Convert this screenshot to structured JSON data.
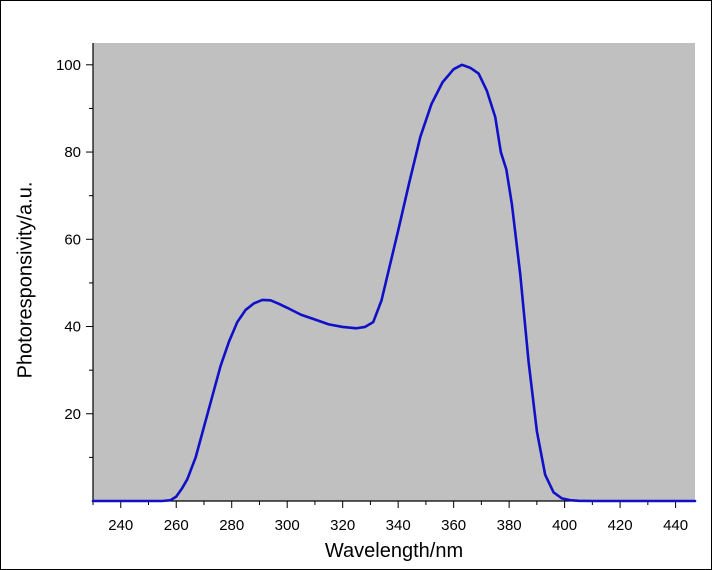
{
  "chart_data": {
    "type": "line",
    "title": "",
    "xlabel": "Wavelength/nm",
    "ylabel": "Photoresponsivity/a.u.",
    "xlim": [
      230,
      447
    ],
    "ylim": [
      0,
      105
    ],
    "x_ticks": [
      240,
      260,
      280,
      300,
      320,
      340,
      360,
      380,
      400,
      420,
      440
    ],
    "y_ticks": [
      20,
      40,
      60,
      80,
      100
    ],
    "grid": false,
    "legend": "none",
    "colors": {
      "plot_background": "#c0c0c0",
      "line": "#1010c8",
      "axis": "#000000"
    },
    "series": [
      {
        "x": [
          230,
          240,
          250,
          255,
          258,
          260,
          262,
          264,
          267,
          270,
          273,
          276,
          279,
          282,
          285,
          288,
          291,
          294,
          297,
          300,
          305,
          310,
          315,
          320,
          325,
          328,
          331,
          334,
          337,
          340,
          344,
          348,
          352,
          356,
          360,
          363,
          366,
          369,
          372,
          375,
          377,
          379,
          381,
          384,
          387,
          390,
          393,
          396,
          399,
          402,
          405,
          410,
          420,
          430,
          440,
          447
        ],
        "y": [
          0,
          0,
          0,
          0,
          0.2,
          1.0,
          2.8,
          5.0,
          10.0,
          17.0,
          24.0,
          31.0,
          36.5,
          41.0,
          43.8,
          45.3,
          46.1,
          46.0,
          45.2,
          44.3,
          42.7,
          41.6,
          40.5,
          39.9,
          39.6,
          39.9,
          41.0,
          46.0,
          54.0,
          62.0,
          73.0,
          83.5,
          91.0,
          96.0,
          99.0,
          100.0,
          99.3,
          98.0,
          94.0,
          88.0,
          80.0,
          76.0,
          68.0,
          52.0,
          32.0,
          16.0,
          6.0,
          2.0,
          0.6,
          0.2,
          0.05,
          0,
          0,
          0,
          0,
          0
        ]
      }
    ]
  }
}
